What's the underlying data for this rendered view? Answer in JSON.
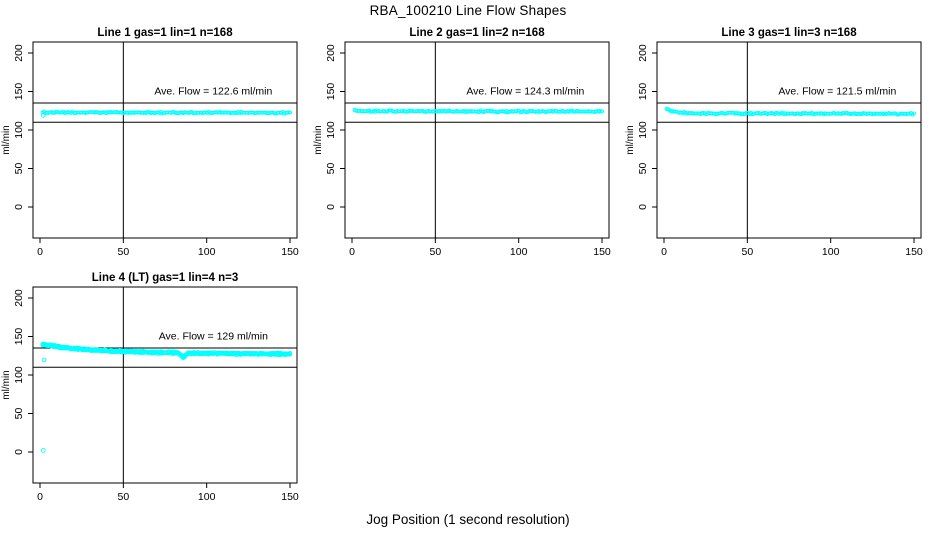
{
  "figure": {
    "title": "RBA_100210  Line Flow Shapes",
    "xlabel": "Jog Position (1 second resolution)",
    "background": "#ffffff",
    "foreground": "#000000"
  },
  "chart_data": {
    "type": "scatter",
    "point_color": "#00ffff",
    "point_style": "open-circle",
    "axis_color": "#000000",
    "ylabel": "ml/min",
    "x_ticks": [
      0,
      50,
      100,
      150
    ],
    "y_ticks": [
      0,
      50,
      100,
      150,
      200
    ],
    "x_range": [
      0,
      150
    ],
    "y_range": [
      0,
      215
    ],
    "grid": false,
    "reference_lines": {
      "horizontal": [
        110,
        135
      ],
      "vertical": [
        50
      ]
    },
    "panels": [
      {
        "title": "Line 1 gas=1 lin=1 n=168",
        "annotation": "Ave. Flow =  122.6  ml/min",
        "ave_flow": 122.6,
        "n": 168,
        "band_halfwidth": 1.3,
        "runs": 1,
        "profile": [
          [
            0,
            123.2
          ],
          [
            6,
            122.8
          ],
          [
            80,
            122.6
          ],
          [
            150,
            122.3
          ]
        ],
        "outliers": [
          [
            2,
            119
          ]
        ]
      },
      {
        "title": "Line 2 gas=1 lin=2 n=168",
        "annotation": "Ave. Flow =  124.3  ml/min",
        "ave_flow": 124.3,
        "n": 168,
        "band_halfwidth": 1.3,
        "runs": 1,
        "profile": [
          [
            0,
            125.0
          ],
          [
            10,
            124.5
          ],
          [
            80,
            124.2
          ],
          [
            150,
            123.9
          ]
        ],
        "outliers": []
      },
      {
        "title": "Line 3 gas=1 lin=3 n=168",
        "annotation": "Ave. Flow =  121.5  ml/min",
        "ave_flow": 121.5,
        "n": 168,
        "band_halfwidth": 1.3,
        "runs": 1,
        "profile": [
          [
            0,
            129.0
          ],
          [
            3,
            125.5
          ],
          [
            8,
            122.8
          ],
          [
            15,
            121.8
          ],
          [
            80,
            121.4
          ],
          [
            150,
            121.1
          ]
        ],
        "outliers": []
      },
      {
        "title": "Line 4 (LT) gas=1 lin=4 n=3",
        "annotation": "Ave. Flow =  129  ml/min",
        "ave_flow": 129,
        "n": 3,
        "band_halfwidth": 1.1,
        "runs": 3,
        "profile": [
          [
            0,
            141.0
          ],
          [
            5,
            138.5
          ],
          [
            12,
            136.2
          ],
          [
            20,
            134.4
          ],
          [
            30,
            132.6
          ],
          [
            45,
            131.0
          ],
          [
            60,
            130.0
          ],
          [
            75,
            129.3
          ],
          [
            83,
            128.8
          ],
          [
            86,
            123.0
          ],
          [
            89,
            128.5
          ],
          [
            100,
            128.3
          ],
          [
            120,
            127.8
          ],
          [
            150,
            127.3
          ]
        ],
        "outliers": [
          [
            2,
            2
          ],
          [
            2.5,
            119.5
          ]
        ]
      }
    ]
  }
}
